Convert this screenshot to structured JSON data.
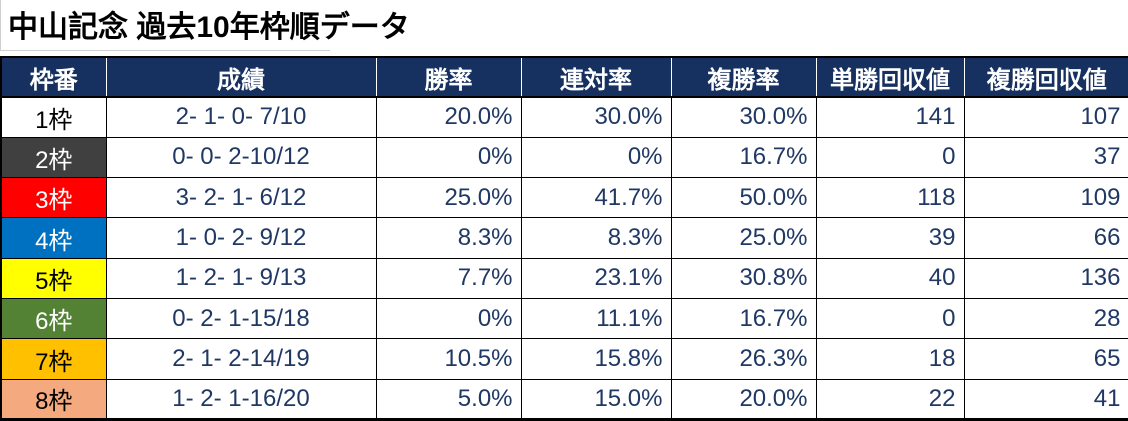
{
  "title": "中山記念 過去10年枠順データ",
  "colors": {
    "header_bg": "#16305f",
    "header_text": "#ffffff",
    "data_text": "#1f3864",
    "border": "#000000",
    "gridline_light": "#cfcfcf"
  },
  "table": {
    "columns": {
      "frame": "枠番",
      "record": "成績",
      "win_rate": "勝率",
      "place_rate": "連対率",
      "show_rate": "複勝率",
      "win_return": "単勝回収値",
      "show_return": "複勝回収値"
    },
    "rows": [
      {
        "frame_label": "1枠",
        "bg": "#ffffff",
        "fg": "#000000",
        "record": "2- 1- 0- 7/10",
        "win_rate": "20.0%",
        "place_rate": "30.0%",
        "show_rate": "30.0%",
        "win_return": "141",
        "show_return": "107"
      },
      {
        "frame_label": "2枠",
        "bg": "#404040",
        "fg": "#ffffff",
        "record": "0- 0- 2-10/12",
        "win_rate": "0%",
        "place_rate": "0%",
        "show_rate": "16.7%",
        "win_return": "0",
        "show_return": "37"
      },
      {
        "frame_label": "3枠",
        "bg": "#ff0000",
        "fg": "#ffffff",
        "record": "3- 2- 1- 6/12",
        "win_rate": "25.0%",
        "place_rate": "41.7%",
        "show_rate": "50.0%",
        "win_return": "118",
        "show_return": "109"
      },
      {
        "frame_label": "4枠",
        "bg": "#0070c0",
        "fg": "#ffffff",
        "record": "1- 0- 2- 9/12",
        "win_rate": "8.3%",
        "place_rate": "8.3%",
        "show_rate": "25.0%",
        "win_return": "39",
        "show_return": "66"
      },
      {
        "frame_label": "5枠",
        "bg": "#ffff00",
        "fg": "#000000",
        "record": "1- 2- 1- 9/13",
        "win_rate": "7.7%",
        "place_rate": "23.1%",
        "show_rate": "30.8%",
        "win_return": "40",
        "show_return": "136"
      },
      {
        "frame_label": "6枠",
        "bg": "#548235",
        "fg": "#ffffff",
        "record": "0- 2- 1-15/18",
        "win_rate": "0%",
        "place_rate": "11.1%",
        "show_rate": "16.7%",
        "win_return": "0",
        "show_return": "28"
      },
      {
        "frame_label": "7枠",
        "bg": "#ffc000",
        "fg": "#000000",
        "record": "2- 1- 2-14/19",
        "win_rate": "10.5%",
        "place_rate": "15.8%",
        "show_rate": "26.3%",
        "win_return": "18",
        "show_return": "65"
      },
      {
        "frame_label": "8枠",
        "bg": "#f4a97e",
        "fg": "#000000",
        "record": "1- 2- 1-16/20",
        "win_rate": "5.0%",
        "place_rate": "15.0%",
        "show_rate": "20.0%",
        "win_return": "22",
        "show_return": "41"
      }
    ]
  }
}
